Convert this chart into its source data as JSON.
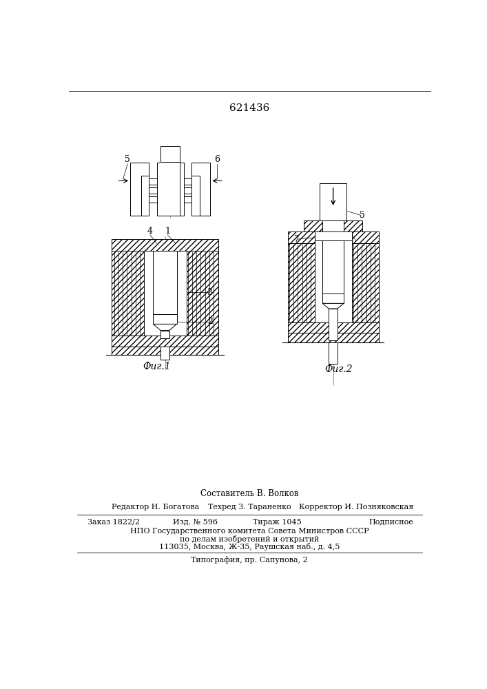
{
  "patent_number": "621436",
  "bottom_section": {
    "compositor": "Составитель В. Волков",
    "editor": "Редактор Н. Богатова",
    "techred": "Техред З. Тараненко",
    "corrector": "Корректор И. Позняковская",
    "order": "Заказ 1822/2",
    "izdanie": "Изд. № 596",
    "tirazh": "Тираж 1045",
    "podpisnoe": "Подписное",
    "npo_line1": "НПО Государственного комитета Совета Министров СССР",
    "npo_line2": "по делам изобретений и открытий",
    "npo_line3": "113035, Москва, Ж-35, Раушская наб., д. 4,5",
    "tipografia": "Типография, пр. Сапунова, 2"
  },
  "fig1_label": "Фиг.1",
  "fig2_label": "Фиг.2",
  "bg_color": "#ffffff"
}
